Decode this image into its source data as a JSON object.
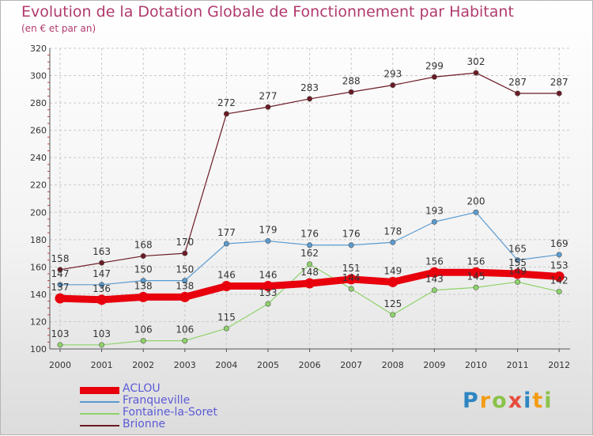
{
  "title": "Evolution de la Dotation Globale de Fonctionnement par Habitant",
  "subtitle": "(en € et par an)",
  "brand": {
    "text": "Proxiti",
    "letter_colors": [
      "#2e86c1",
      "#f39c12",
      "#8bc34a",
      "#e74c3c",
      "#2e86c1",
      "#f39c12",
      "#8bc34a"
    ]
  },
  "chart_data": {
    "type": "line",
    "categories": [
      "2000",
      "2001",
      "2002",
      "2003",
      "2004",
      "2005",
      "2006",
      "2007",
      "2008",
      "2009",
      "2010",
      "2011",
      "2012"
    ],
    "ylim": [
      100,
      320
    ],
    "yticks": [
      100,
      120,
      140,
      160,
      180,
      200,
      220,
      240,
      260,
      280,
      300,
      320
    ],
    "grid": true,
    "legend_position": "bottom-left",
    "series": [
      {
        "name": "Brionne",
        "color": "#6b1a24",
        "width": 1.2,
        "values": [
          158,
          163,
          168,
          170,
          272,
          277,
          283,
          288,
          293,
          299,
          302,
          287,
          287
        ],
        "labels": [
          "158",
          "163",
          "168",
          "170",
          "272",
          "277",
          "283",
          "288",
          "293",
          "299",
          "302",
          "287",
          "287"
        ]
      },
      {
        "name": "Franqueville",
        "color": "#5a9bd0",
        "width": 1.2,
        "values": [
          147,
          147,
          150,
          150,
          177,
          179,
          176,
          176,
          178,
          193,
          200,
          165,
          169
        ],
        "labels": [
          "147",
          "147",
          "150",
          "150",
          "177",
          "179",
          "176",
          "176",
          "178",
          "193",
          "200",
          "165",
          "169"
        ]
      },
      {
        "name": "Fontaine-la-Soret",
        "color": "#8ed36a",
        "width": 1.2,
        "values": [
          103,
          103,
          106,
          106,
          115,
          133,
          162,
          144,
          125,
          143,
          145,
          149,
          142
        ],
        "labels": [
          "103",
          "103",
          "106",
          "106",
          "115",
          "133",
          "162",
          "144",
          "125",
          "143",
          "145",
          "149",
          "142"
        ]
      },
      {
        "name": "ACLOU",
        "color": "#e8000d",
        "width": 9,
        "values": [
          137,
          136,
          138,
          138,
          146,
          146,
          148,
          151,
          149,
          156,
          156,
          155,
          153
        ],
        "labels": [
          "137",
          "136",
          "138",
          "138",
          "146",
          "146",
          "148",
          "151",
          "149",
          "156",
          "156",
          "155",
          "153"
        ]
      }
    ],
    "legend": [
      {
        "name": "ACLOU",
        "color": "#e8000d",
        "text_color": "#5b5bd6",
        "swatch": 9
      },
      {
        "name": "Franqueville",
        "color": "#5a9bd0",
        "text_color": "#5b5bd6",
        "swatch": 2
      },
      {
        "name": "Fontaine-la-Soret",
        "color": "#8ed36a",
        "text_color": "#5b5bd6",
        "swatch": 2
      },
      {
        "name": "Brionne",
        "color": "#6b1a24",
        "text_color": "#5b5bd6",
        "swatch": 2
      }
    ]
  }
}
